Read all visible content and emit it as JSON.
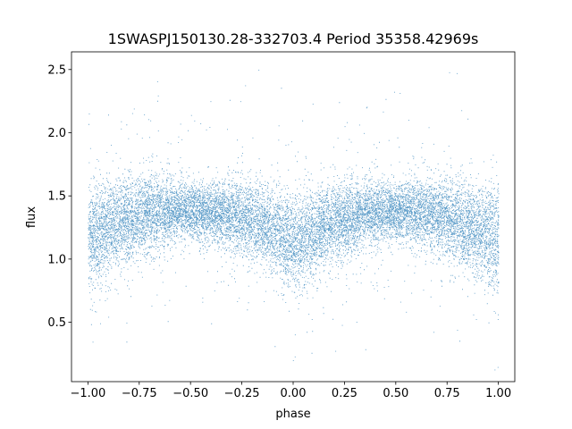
{
  "chart_data": {
    "type": "scatter",
    "title": "1SWASPJ150130.28-332703.4 Period 35358.42969s",
    "xlabel": "phase",
    "ylabel": "flux",
    "xlim": [
      -1.08,
      1.08
    ],
    "ylim": [
      0.03,
      2.64
    ],
    "grid": false,
    "legend": "none",
    "point_color": "#1f77b4",
    "x_ticks": [
      {
        "value": -1.0,
        "label": "−1.00"
      },
      {
        "value": -0.75,
        "label": "−0.75"
      },
      {
        "value": -0.5,
        "label": "−0.50"
      },
      {
        "value": -0.25,
        "label": "−0.25"
      },
      {
        "value": 0.0,
        "label": "0.00"
      },
      {
        "value": 0.25,
        "label": "0.25"
      },
      {
        "value": 0.5,
        "label": "0.50"
      },
      {
        "value": 0.75,
        "label": "0.75"
      },
      {
        "value": 1.0,
        "label": "1.00"
      }
    ],
    "y_ticks": [
      {
        "value": 0.5,
        "label": "0.5"
      },
      {
        "value": 1.0,
        "label": "1.0"
      },
      {
        "value": 1.5,
        "label": "1.5"
      },
      {
        "value": 2.0,
        "label": "2.0"
      },
      {
        "value": 2.5,
        "label": "2.5"
      }
    ],
    "light_curve_profile": {
      "x": [
        -1.0,
        -0.9,
        -0.8,
        -0.7,
        -0.6,
        -0.5,
        -0.4,
        -0.3,
        -0.2,
        -0.1,
        0.0,
        0.1,
        0.2,
        0.3,
        0.4,
        0.5,
        0.6,
        0.7,
        0.8,
        0.9,
        1.0
      ],
      "y": [
        1.15,
        1.25,
        1.33,
        1.37,
        1.38,
        1.38,
        1.36,
        1.34,
        1.3,
        1.22,
        1.12,
        1.22,
        1.3,
        1.34,
        1.37,
        1.38,
        1.37,
        1.35,
        1.3,
        1.22,
        1.14
      ]
    },
    "scatter_spread": {
      "x": [
        -1.0,
        -0.5,
        0.0,
        0.5,
        1.0
      ],
      "y_sigma": [
        0.28,
        0.15,
        0.25,
        0.15,
        0.28
      ]
    },
    "y_range_observed": [
      0.12,
      2.52
    ],
    "n_points_approx": 60000
  }
}
